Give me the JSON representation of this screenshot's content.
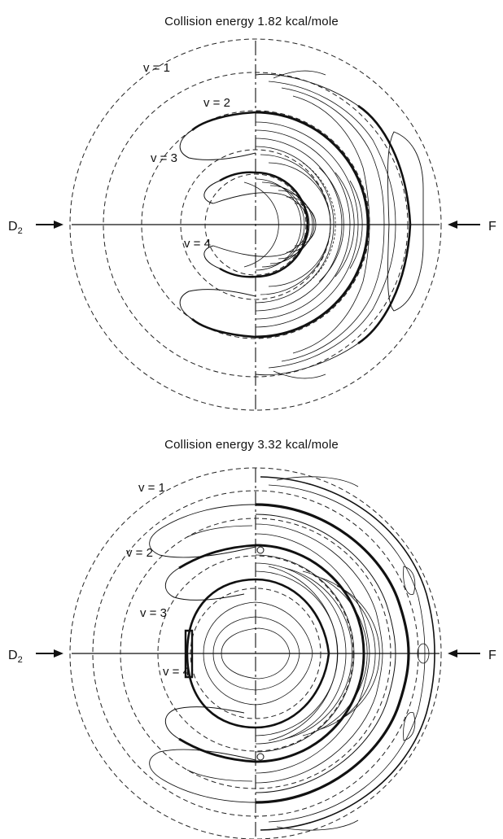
{
  "panels": [
    {
      "title": "Collision energy 1.82 kcal/mole",
      "vibrational_labels": [
        "v = 1",
        "v = 2",
        "v = 3",
        "v = 4"
      ],
      "left_beam": {
        "text": "D",
        "subscript": "2"
      },
      "right_beam": {
        "text": "F"
      }
    },
    {
      "title": "Collision energy 3.32 kcal/mole",
      "vibrational_labels": [
        "v = 1",
        "v = 2",
        "v = 3",
        "v = 4"
      ],
      "left_beam": {
        "text": "D",
        "subscript": "2"
      },
      "right_beam": {
        "text": "F"
      }
    }
  ]
}
